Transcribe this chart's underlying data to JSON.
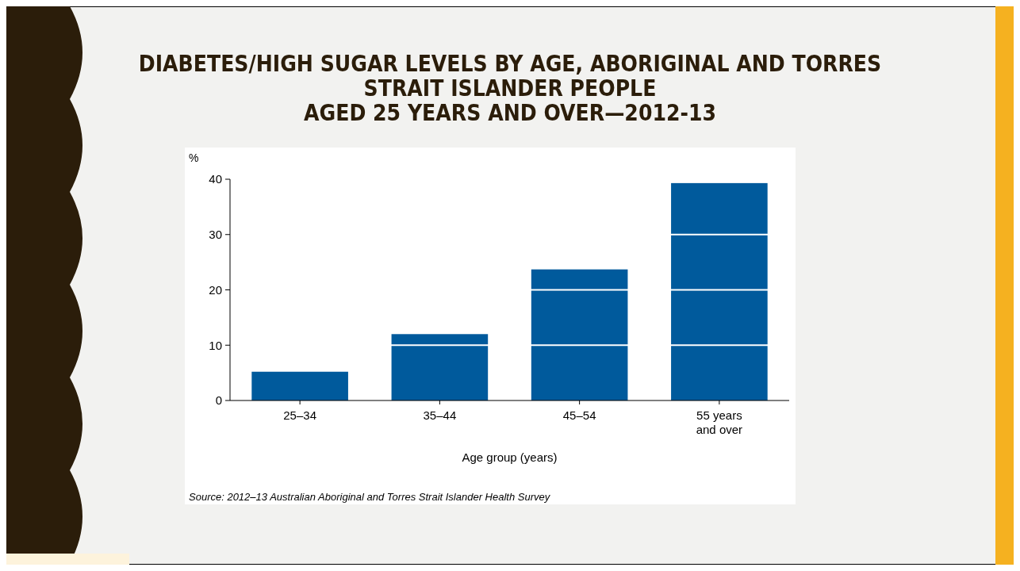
{
  "chart_data": {
    "type": "bar",
    "title": "DIABETES/HIGH SUGAR LEVELS BY AGE, ABORIGINAL AND TORRES\nSTRAIT ISLANDER PEOPLE\nAGED 25 YEARS AND OVER—2012-13",
    "categories": [
      "25–34",
      "35–44",
      "45–54",
      "55 years and over"
    ],
    "values": [
      5.2,
      12.0,
      23.7,
      39.3
    ],
    "color": "#005a9c",
    "ylim": [
      0,
      40
    ],
    "yticks": [
      0,
      10,
      20,
      30,
      40
    ],
    "grid": "y",
    "ylabel": "%",
    "xlabel": "Age group (years)",
    "annotations": [
      "Source: 2012–13 Australian Aboriginal and Torres Strait Islander Health Survey"
    ]
  }
}
